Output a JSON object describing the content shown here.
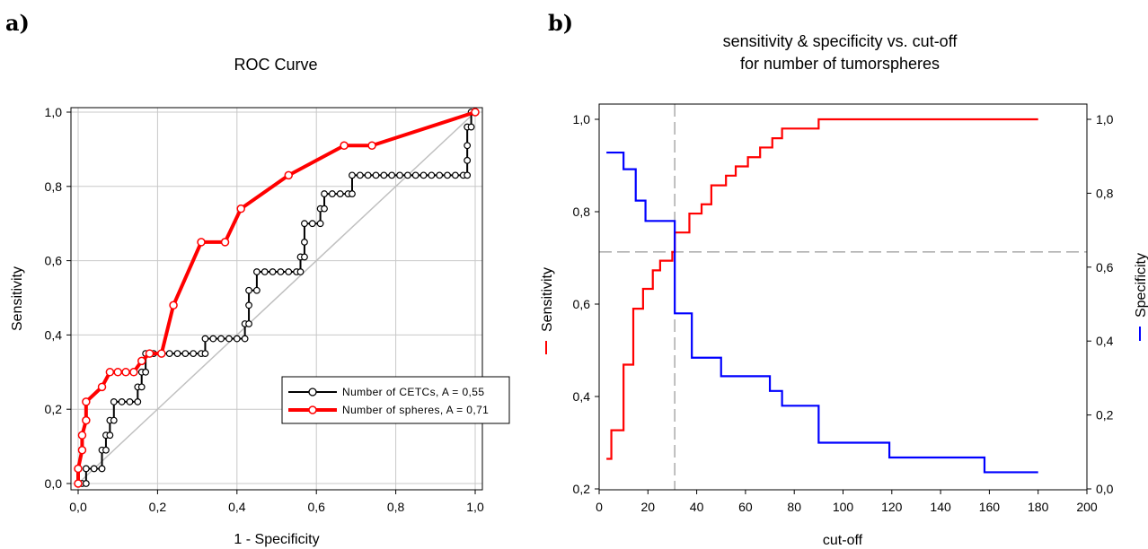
{
  "chart_data": [
    {
      "panel": "a)",
      "type": "line",
      "title": "ROC Curve",
      "xlabel": "1 - Specificity",
      "ylabel": "Sensitivity",
      "xlim": [
        0,
        1
      ],
      "ylim": [
        0,
        1
      ],
      "xticks": [
        "0,0",
        "0,2",
        "0,4",
        "0,6",
        "0,8",
        "1,0"
      ],
      "yticks": [
        "0,0",
        "0,2",
        "0,4",
        "0,6",
        "0,8",
        "1,0"
      ],
      "grid": true,
      "legend_position": "center-right",
      "reference_line": [
        [
          0,
          0
        ],
        [
          1,
          1
        ]
      ],
      "colors": {
        "cetcs": "#000000",
        "spheres": "#ff0000",
        "reference": "#c0c0c0",
        "grid": "#c8c8c8"
      },
      "series": [
        {
          "name": "Number of CETCs, A = 0,55",
          "points": [
            [
              0,
              0
            ],
            [
              0.01,
              0
            ],
            [
              0.02,
              0
            ],
            [
              0.02,
              0.04
            ],
            [
              0.04,
              0.04
            ],
            [
              0.06,
              0.04
            ],
            [
              0.06,
              0.09
            ],
            [
              0.07,
              0.09
            ],
            [
              0.07,
              0.13
            ],
            [
              0.08,
              0.13
            ],
            [
              0.08,
              0.17
            ],
            [
              0.09,
              0.17
            ],
            [
              0.09,
              0.22
            ],
            [
              0.11,
              0.22
            ],
            [
              0.13,
              0.22
            ],
            [
              0.15,
              0.22
            ],
            [
              0.15,
              0.26
            ],
            [
              0.16,
              0.26
            ],
            [
              0.16,
              0.3
            ],
            [
              0.17,
              0.3
            ],
            [
              0.17,
              0.35
            ],
            [
              0.19,
              0.35
            ],
            [
              0.21,
              0.35
            ],
            [
              0.23,
              0.35
            ],
            [
              0.25,
              0.35
            ],
            [
              0.27,
              0.35
            ],
            [
              0.29,
              0.35
            ],
            [
              0.31,
              0.35
            ],
            [
              0.32,
              0.35
            ],
            [
              0.32,
              0.39
            ],
            [
              0.34,
              0.39
            ],
            [
              0.36,
              0.39
            ],
            [
              0.38,
              0.39
            ],
            [
              0.4,
              0.39
            ],
            [
              0.42,
              0.39
            ],
            [
              0.42,
              0.43
            ],
            [
              0.43,
              0.43
            ],
            [
              0.43,
              0.48
            ],
            [
              0.43,
              0.52
            ],
            [
              0.45,
              0.52
            ],
            [
              0.45,
              0.57
            ],
            [
              0.47,
              0.57
            ],
            [
              0.49,
              0.57
            ],
            [
              0.51,
              0.57
            ],
            [
              0.53,
              0.57
            ],
            [
              0.55,
              0.57
            ],
            [
              0.56,
              0.57
            ],
            [
              0.56,
              0.61
            ],
            [
              0.57,
              0.61
            ],
            [
              0.57,
              0.65
            ],
            [
              0.57,
              0.7
            ],
            [
              0.59,
              0.7
            ],
            [
              0.61,
              0.7
            ],
            [
              0.61,
              0.74
            ],
            [
              0.62,
              0.74
            ],
            [
              0.62,
              0.78
            ],
            [
              0.64,
              0.78
            ],
            [
              0.66,
              0.78
            ],
            [
              0.68,
              0.78
            ],
            [
              0.69,
              0.78
            ],
            [
              0.69,
              0.83
            ],
            [
              0.71,
              0.83
            ],
            [
              0.73,
              0.83
            ],
            [
              0.75,
              0.83
            ],
            [
              0.77,
              0.83
            ],
            [
              0.79,
              0.83
            ],
            [
              0.81,
              0.83
            ],
            [
              0.83,
              0.83
            ],
            [
              0.85,
              0.83
            ],
            [
              0.87,
              0.83
            ],
            [
              0.89,
              0.83
            ],
            [
              0.91,
              0.83
            ],
            [
              0.93,
              0.83
            ],
            [
              0.95,
              0.83
            ],
            [
              0.97,
              0.83
            ],
            [
              0.98,
              0.83
            ],
            [
              0.98,
              0.87
            ],
            [
              0.98,
              0.91
            ],
            [
              0.98,
              0.96
            ],
            [
              0.99,
              0.96
            ],
            [
              0.99,
              1.0
            ],
            [
              1.0,
              1.0
            ]
          ]
        },
        {
          "name": "Number of spheres, A = 0,71",
          "points": [
            [
              0,
              0
            ],
            [
              0,
              0.04
            ],
            [
              0.01,
              0.09
            ],
            [
              0.01,
              0.13
            ],
            [
              0.02,
              0.17
            ],
            [
              0.02,
              0.22
            ],
            [
              0.06,
              0.26
            ],
            [
              0.08,
              0.3
            ],
            [
              0.1,
              0.3
            ],
            [
              0.12,
              0.3
            ],
            [
              0.14,
              0.3
            ],
            [
              0.16,
              0.33
            ],
            [
              0.18,
              0.35
            ],
            [
              0.21,
              0.35
            ],
            [
              0.24,
              0.48
            ],
            [
              0.31,
              0.65
            ],
            [
              0.37,
              0.65
            ],
            [
              0.41,
              0.74
            ],
            [
              0.53,
              0.83
            ],
            [
              0.67,
              0.91
            ],
            [
              0.74,
              0.91
            ],
            [
              1.0,
              1.0
            ]
          ]
        }
      ]
    },
    {
      "panel": "b)",
      "type": "line",
      "title": "sensitivity & specificity vs. cut-off",
      "subtitle": "for number of tumorspheres",
      "xlabel": "cut-off",
      "ylabel": "Sensitivity",
      "ylabel_right": "Specificity",
      "xlim": [
        0,
        200
      ],
      "ylim": [
        0.2,
        1.0
      ],
      "ylim_right": [
        0.0,
        1.0
      ],
      "xticks": [
        "0",
        "20",
        "40",
        "60",
        "80",
        "100",
        "120",
        "140",
        "160",
        "180",
        "200"
      ],
      "yticks": [
        "0,2",
        "0,4",
        "0,6",
        "0,8",
        "1,0"
      ],
      "yticks_right": [
        "0,0",
        "0,2",
        "0,4",
        "0,6",
        "0,8",
        "1,0"
      ],
      "grid": false,
      "optimal_cutoff": 31,
      "optimal_value": 0.713,
      "colors": {
        "sensitivity": "#ff0000",
        "specificity": "#0000ff",
        "guide": "#b0b0b0"
      },
      "series": [
        {
          "name": "Sensitivity",
          "axis": "left",
          "step_points": [
            [
              3,
              0.265
            ],
            [
              5,
              0.327
            ],
            [
              10,
              0.469
            ],
            [
              14,
              0.59
            ],
            [
              18,
              0.633
            ],
            [
              22,
              0.673
            ],
            [
              25,
              0.694
            ],
            [
              30,
              0.713
            ],
            [
              31,
              0.755
            ],
            [
              37,
              0.796
            ],
            [
              42,
              0.816
            ],
            [
              46,
              0.857
            ],
            [
              52,
              0.878
            ],
            [
              56,
              0.898
            ],
            [
              61,
              0.918
            ],
            [
              66,
              0.939
            ],
            [
              71,
              0.959
            ],
            [
              75,
              0.98
            ],
            [
              90,
              1.0
            ],
            [
              180,
              1.0
            ]
          ]
        },
        {
          "name": "Specificity",
          "axis": "right",
          "step_points": [
            [
              3,
              0.91
            ],
            [
              10,
              0.865
            ],
            [
              15,
              0.78
            ],
            [
              19,
              0.725
            ],
            [
              31,
              0.475
            ],
            [
              38,
              0.355
            ],
            [
              50,
              0.305
            ],
            [
              70,
              0.265
            ],
            [
              75,
              0.225
            ],
            [
              90,
              0.125
            ],
            [
              119,
              0.085
            ],
            [
              158,
              0.045
            ],
            [
              180,
              0.045
            ]
          ]
        }
      ]
    }
  ]
}
